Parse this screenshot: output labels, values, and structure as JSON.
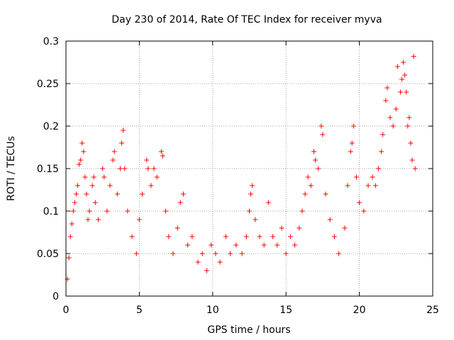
{
  "chart_data": {
    "type": "scatter",
    "title": "Day 230 of 2014, Rate Of TEC Index for receiver myva",
    "xlabel": "GPS time / hours",
    "ylabel": "ROTI / TECUs",
    "xlim": [
      0,
      25
    ],
    "ylim": [
      0,
      0.3
    ],
    "x_ticks": [
      0,
      5,
      10,
      15,
      20,
      25
    ],
    "x_tick_labels": [
      "0",
      "5",
      "10",
      "15",
      "20",
      "25"
    ],
    "y_ticks": [
      0,
      0.05,
      0.1,
      0.15,
      0.2,
      0.25,
      0.3
    ],
    "y_tick_labels": [
      "0",
      "0.05",
      "0.1",
      "0.15",
      "0.2",
      "0.25",
      "0.3"
    ],
    "grid": true,
    "marker": "+",
    "marker_color": "#ff0000",
    "series": [
      {
        "name": "ROTI",
        "points": [
          [
            0.1,
            0.02
          ],
          [
            0.2,
            0.045
          ],
          [
            0.3,
            0.07
          ],
          [
            0.4,
            0.085
          ],
          [
            0.5,
            0.1
          ],
          [
            0.6,
            0.11
          ],
          [
            0.7,
            0.12
          ],
          [
            0.8,
            0.13
          ],
          [
            0.9,
            0.155
          ],
          [
            1.0,
            0.16
          ],
          [
            1.1,
            0.18
          ],
          [
            1.2,
            0.17
          ],
          [
            1.3,
            0.14
          ],
          [
            1.4,
            0.12
          ],
          [
            1.5,
            0.09
          ],
          [
            1.6,
            0.1
          ],
          [
            1.8,
            0.13
          ],
          [
            1.9,
            0.14
          ],
          [
            2.0,
            0.11
          ],
          [
            2.2,
            0.09
          ],
          [
            2.5,
            0.15
          ],
          [
            2.6,
            0.14
          ],
          [
            2.8,
            0.1
          ],
          [
            3.0,
            0.13
          ],
          [
            3.2,
            0.16
          ],
          [
            3.3,
            0.17
          ],
          [
            3.5,
            0.12
          ],
          [
            3.7,
            0.15
          ],
          [
            3.8,
            0.18
          ],
          [
            3.9,
            0.195
          ],
          [
            4.0,
            0.15
          ],
          [
            4.2,
            0.1
          ],
          [
            4.5,
            0.07
          ],
          [
            4.8,
            0.05
          ],
          [
            5.0,
            0.09
          ],
          [
            5.2,
            0.12
          ],
          [
            5.5,
            0.16
          ],
          [
            5.6,
            0.15
          ],
          [
            5.8,
            0.13
          ],
          [
            6.0,
            0.15
          ],
          [
            6.2,
            0.14
          ],
          [
            6.5,
            0.17
          ],
          [
            6.6,
            0.165
          ],
          [
            6.8,
            0.1
          ],
          [
            7.0,
            0.07
          ],
          [
            7.3,
            0.05
          ],
          [
            7.6,
            0.08
          ],
          [
            7.8,
            0.11
          ],
          [
            8.0,
            0.12
          ],
          [
            8.3,
            0.06
          ],
          [
            8.6,
            0.07
          ],
          [
            9.0,
            0.04
          ],
          [
            9.3,
            0.05
          ],
          [
            9.6,
            0.03
          ],
          [
            9.9,
            0.06
          ],
          [
            10.2,
            0.05
          ],
          [
            10.5,
            0.04
          ],
          [
            10.9,
            0.07
          ],
          [
            11.2,
            0.05
          ],
          [
            11.6,
            0.06
          ],
          [
            12.0,
            0.05
          ],
          [
            12.3,
            0.07
          ],
          [
            12.5,
            0.1
          ],
          [
            12.6,
            0.12
          ],
          [
            12.7,
            0.13
          ],
          [
            12.9,
            0.09
          ],
          [
            13.2,
            0.07
          ],
          [
            13.5,
            0.06
          ],
          [
            13.8,
            0.11
          ],
          [
            14.1,
            0.07
          ],
          [
            14.4,
            0.06
          ],
          [
            14.7,
            0.08
          ],
          [
            15.0,
            0.05
          ],
          [
            15.3,
            0.07
          ],
          [
            15.6,
            0.06
          ],
          [
            15.9,
            0.08
          ],
          [
            16.1,
            0.1
          ],
          [
            16.3,
            0.12
          ],
          [
            16.5,
            0.14
          ],
          [
            16.7,
            0.13
          ],
          [
            16.9,
            0.17
          ],
          [
            17.0,
            0.16
          ],
          [
            17.2,
            0.15
          ],
          [
            17.4,
            0.2
          ],
          [
            17.5,
            0.19
          ],
          [
            17.7,
            0.12
          ],
          [
            18.0,
            0.09
          ],
          [
            18.3,
            0.07
          ],
          [
            18.6,
            0.05
          ],
          [
            19.0,
            0.08
          ],
          [
            19.2,
            0.13
          ],
          [
            19.4,
            0.17
          ],
          [
            19.5,
            0.18
          ],
          [
            19.6,
            0.2
          ],
          [
            19.8,
            0.14
          ],
          [
            20.0,
            0.11
          ],
          [
            20.3,
            0.1
          ],
          [
            20.6,
            0.13
          ],
          [
            20.9,
            0.14
          ],
          [
            21.1,
            0.13
          ],
          [
            21.3,
            0.15
          ],
          [
            21.5,
            0.17
          ],
          [
            21.6,
            0.19
          ],
          [
            21.8,
            0.23
          ],
          [
            21.9,
            0.245
          ],
          [
            22.1,
            0.21
          ],
          [
            22.3,
            0.2
          ],
          [
            22.5,
            0.22
          ],
          [
            22.6,
            0.27
          ],
          [
            22.8,
            0.24
          ],
          [
            22.9,
            0.255
          ],
          [
            23.0,
            0.275
          ],
          [
            23.1,
            0.26
          ],
          [
            23.2,
            0.24
          ],
          [
            23.3,
            0.2
          ],
          [
            23.4,
            0.21
          ],
          [
            23.5,
            0.18
          ],
          [
            23.6,
            0.16
          ],
          [
            23.7,
            0.282
          ],
          [
            23.8,
            0.15
          ]
        ]
      }
    ]
  }
}
